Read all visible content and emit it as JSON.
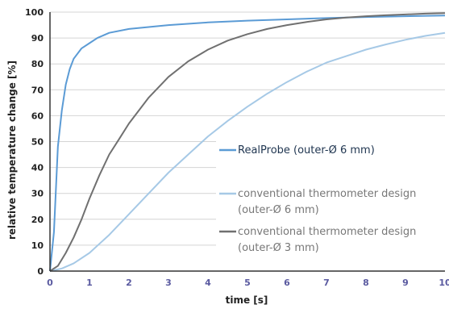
{
  "chart_data": {
    "type": "line",
    "xlabel": "time [s]",
    "ylabel": "relative temperature change [%]",
    "xlim": [
      0,
      10
    ],
    "ylim": [
      0,
      100
    ],
    "x_ticks": [
      0,
      1,
      2,
      3,
      4,
      5,
      6,
      7,
      8,
      9,
      10
    ],
    "y_ticks": [
      0,
      10,
      20,
      30,
      40,
      50,
      60,
      70,
      80,
      90,
      100
    ],
    "grid": "horizontal",
    "legend_position": "lower-right",
    "series": [
      {
        "name": "RealProbe (outer-Ø 6 mm)",
        "color": "#5b9bd5",
        "x": [
          0,
          0.1,
          0.2,
          0.3,
          0.4,
          0.5,
          0.6,
          0.8,
          1.0,
          1.2,
          1.5,
          2.0,
          3.0,
          4.0,
          5.0,
          6.0,
          7.0,
          8.0,
          9.0,
          10.0
        ],
        "y": [
          0,
          15,
          48,
          62,
          72,
          78,
          82,
          86,
          88,
          90,
          92,
          93.5,
          95,
          96,
          96.7,
          97.2,
          97.7,
          98.1,
          98.4,
          98.7
        ]
      },
      {
        "name": "conventional thermometer design (outer-Ø 6 mm)",
        "legend_lines": [
          "conventional thermometer design",
          "(outer-Ø 6 mm)"
        ],
        "color": "#a6c9e6",
        "x": [
          0,
          0.3,
          0.6,
          1.0,
          1.5,
          2.0,
          2.5,
          3.0,
          3.5,
          4.0,
          4.5,
          5.0,
          5.5,
          6.0,
          6.5,
          7.0,
          7.5,
          8.0,
          8.5,
          9.0,
          9.5,
          10.0
        ],
        "y": [
          0,
          1,
          3,
          7,
          14,
          22,
          30,
          38,
          45,
          52,
          58,
          63.5,
          68.5,
          73,
          77,
          80.5,
          83,
          85.5,
          87.5,
          89.3,
          90.8,
          92
        ]
      },
      {
        "name": "conventional thermometer design (outer-Ø 3 mm)",
        "legend_lines": [
          "conventional thermometer design",
          "(outer-Ø 3 mm)"
        ],
        "color": "#707070",
        "x": [
          0,
          0.2,
          0.4,
          0.6,
          0.8,
          1.0,
          1.25,
          1.5,
          1.75,
          2.0,
          2.5,
          3.0,
          3.5,
          4.0,
          4.5,
          5.0,
          5.5,
          6.0,
          6.5,
          7.0,
          7.5,
          8.0,
          8.5,
          9.0,
          9.5,
          10.0
        ],
        "y": [
          0,
          2,
          7,
          13,
          20,
          28,
          37,
          45,
          51,
          57,
          67,
          75,
          81,
          85.5,
          89,
          91.5,
          93.5,
          95,
          96.2,
          97.2,
          97.9,
          98.4,
          98.8,
          99.1,
          99.4,
          99.6
        ]
      }
    ]
  }
}
